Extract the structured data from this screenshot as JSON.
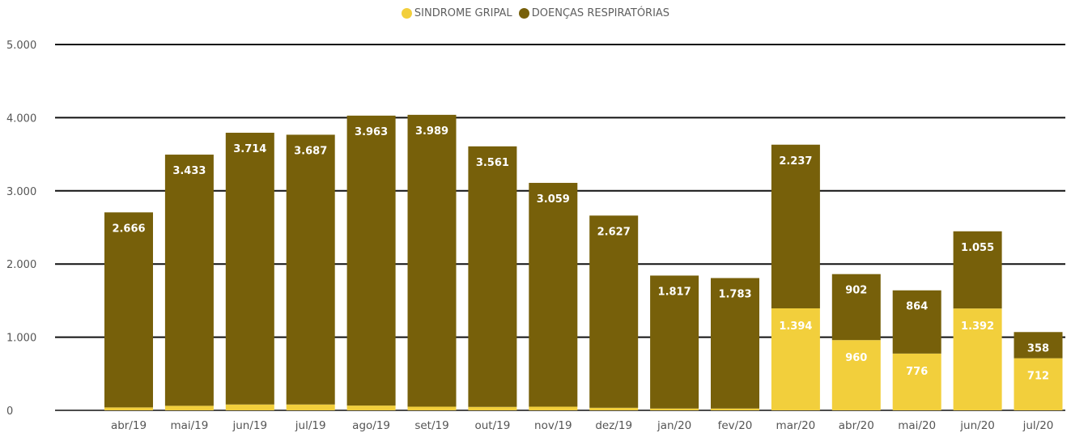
{
  "chart_data": {
    "type": "bar",
    "stacked": true,
    "categories": [
      "abr/19",
      "mai/19",
      "jun/19",
      "jul/19",
      "ago/19",
      "set/19",
      "out/19",
      "nov/19",
      "dez/19",
      "jan/20",
      "fev/20",
      "mar/20",
      "abr/20",
      "mai/20",
      "jun/20",
      "jul/20"
    ],
    "series": [
      {
        "name": "SINDROME GRIPAL",
        "color": "#f2cf3c",
        "values": [
          40,
          62,
          80,
          80,
          65,
          50,
          47,
          50,
          35,
          25,
          25,
          1394,
          960,
          776,
          1392,
          712
        ],
        "labels": [
          "",
          "",
          "",
          "",
          "",
          "",
          "",
          "",
          "",
          "",
          "",
          "1.394",
          "960",
          "776",
          "1.392",
          "712"
        ]
      },
      {
        "name": "DOENÇAS RESPIRATÓRIAS",
        "color": "#77600a",
        "values": [
          2666,
          3433,
          3714,
          3687,
          3963,
          3989,
          3561,
          3059,
          2627,
          1817,
          1783,
          2237,
          902,
          864,
          1055,
          358
        ],
        "labels": [
          "2.666",
          "3.433",
          "3.714",
          "3.687",
          "3.963",
          "3.989",
          "3.561",
          "3.059",
          "2.627",
          "1.817",
          "1.783",
          "2.237",
          "902",
          "864",
          "1.055",
          "358"
        ]
      }
    ],
    "ylim": [
      0,
      5000
    ],
    "yticks": [
      0,
      1000,
      2000,
      3000,
      4000,
      5000
    ],
    "ytick_labels": [
      "0",
      "1.000",
      "2.000",
      "3.000",
      "4.000",
      "5.000"
    ],
    "grid": true,
    "legend_position": "top-center"
  }
}
